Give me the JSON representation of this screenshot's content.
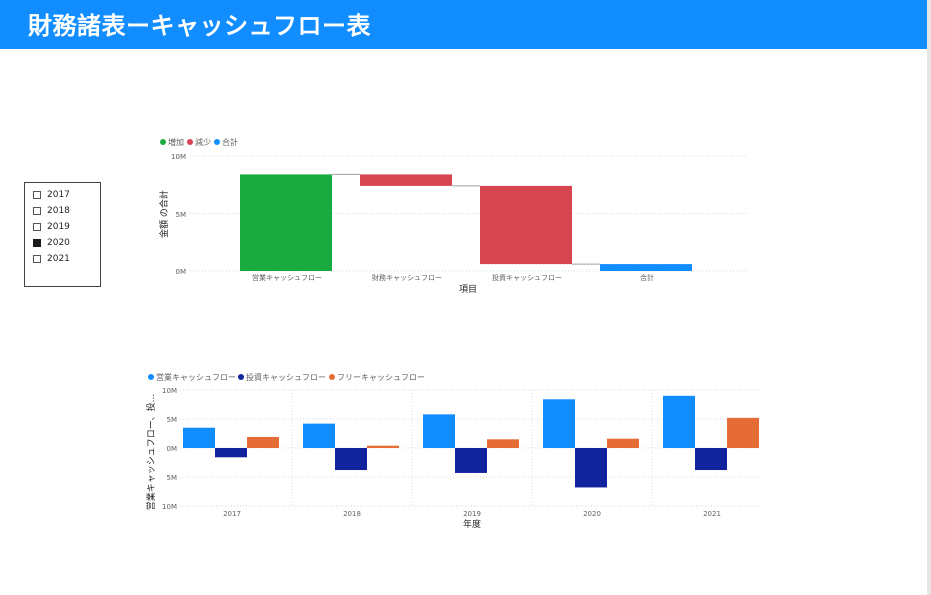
{
  "header": {
    "title": "財務諸表ーキャッシュフロー表"
  },
  "slicer": {
    "items": [
      {
        "label": "2017",
        "checked": false
      },
      {
        "label": "2018",
        "checked": false
      },
      {
        "label": "2019",
        "checked": false
      },
      {
        "label": "2020",
        "checked": true
      },
      {
        "label": "2021",
        "checked": false
      }
    ]
  },
  "colors": {
    "header": "#118dff",
    "increase": "#1aab40",
    "decrease": "#d64550",
    "total": "#118dff",
    "operating": "#118dff",
    "investing": "#12239e",
    "free": "#e66c37"
  },
  "chart_data": [
    {
      "type": "waterfall",
      "legend": [
        "増加",
        "減少",
        "合計"
      ],
      "xlabel": "項目",
      "ylabel": "金額 の合計",
      "y_ticks": [
        "10M",
        "5M",
        "0M"
      ],
      "ylim": [
        0,
        10
      ],
      "categories": [
        "営業キャッシュフロー",
        "財務キャッシュフロー",
        "投資キャッシュフロー",
        "合計"
      ],
      "steps": [
        {
          "kind": "increase",
          "start": 0,
          "end": 8.4
        },
        {
          "kind": "decrease",
          "start": 8.4,
          "end": 7.4
        },
        {
          "kind": "decrease",
          "start": 7.4,
          "end": 0.6
        },
        {
          "kind": "total",
          "start": 0,
          "end": 0.6
        }
      ]
    },
    {
      "type": "bar",
      "legend": [
        "営業キャッシュフロー",
        "投資キャッシュフロー",
        "フリーキャッシュフロー"
      ],
      "xlabel": "年度",
      "ylabel": "営業キャッシュフロー、投...",
      "y_ticks": [
        "10M",
        "5M",
        "0M",
        "5M",
        "10M"
      ],
      "ylim": [
        -10,
        10
      ],
      "categories": [
        "2017",
        "2018",
        "2019",
        "2020",
        "2021"
      ],
      "series": [
        {
          "name": "営業キャッシュフロー",
          "values": [
            3.5,
            4.2,
            5.8,
            8.4,
            9.0
          ]
        },
        {
          "name": "投資キャッシュフロー",
          "values": [
            -1.6,
            -3.8,
            -4.3,
            -6.8,
            -3.8
          ]
        },
        {
          "name": "フリーキャッシュフロー",
          "values": [
            1.9,
            0.4,
            1.5,
            1.6,
            5.2
          ]
        }
      ]
    }
  ]
}
